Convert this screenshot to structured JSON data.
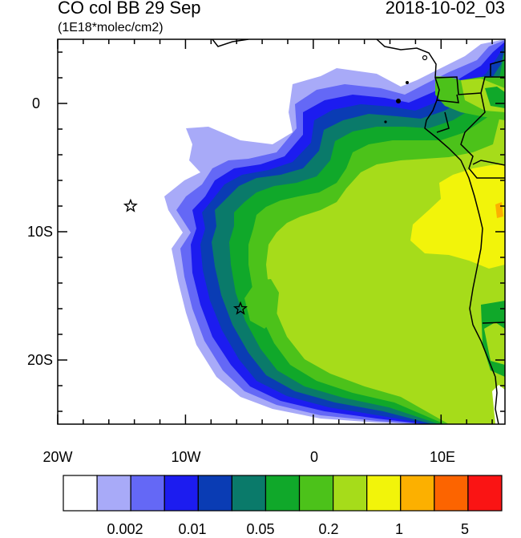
{
  "header": {
    "title": "CO col BB 29 Sep",
    "datetime": "2018-10-02_03",
    "units": "(1E18*molec/cm2)"
  },
  "axes": {
    "y_ticks": [
      "0",
      "10S",
      "20S"
    ],
    "x_ticks": [
      "20W",
      "10W",
      "0",
      "10E"
    ],
    "lon_range": [
      -20,
      15
    ],
    "lat_range": [
      -25,
      5
    ]
  },
  "markers": [
    {
      "name": "star-marker",
      "lon": -14.3,
      "lat": -8.0
    },
    {
      "name": "star-marker",
      "lon": -5.7,
      "lat": -16.0
    }
  ],
  "colorbar": {
    "colors": [
      "#ffffff",
      "#a8aaf8",
      "#6468f6",
      "#1c1cf0",
      "#0a3cb4",
      "#0a7a6a",
      "#10a82a",
      "#4cc21a",
      "#a6dc1a",
      "#f2f40a",
      "#fcb000",
      "#fc6400",
      "#fa1414"
    ],
    "labels": [
      "0.002",
      "0.01",
      "0.05",
      "0.2",
      "1",
      "5"
    ]
  }
}
